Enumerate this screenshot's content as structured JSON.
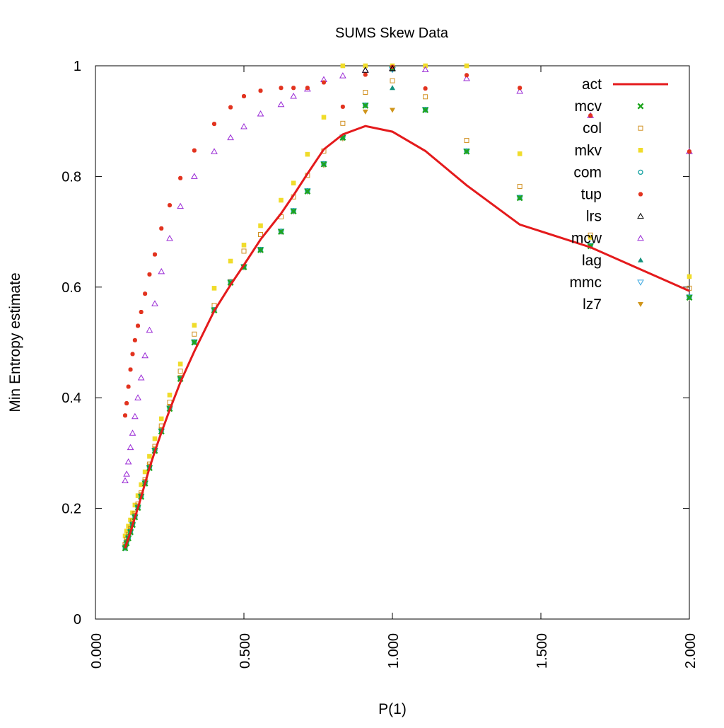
{
  "chart_data": {
    "type": "scatter",
    "title": "SUMS Skew Data",
    "xlabel": "P(1)",
    "ylabel": "Min Entropy estimate",
    "xlim": [
      0.0,
      2.0
    ],
    "ylim": [
      0,
      1
    ],
    "grid": false,
    "legend_position": "top-right",
    "x_tick_labels": [
      "0.000",
      "0.500",
      "1.000",
      "1.500",
      "2.000"
    ],
    "y_tick_labels": [
      "0",
      "0.2",
      "0.4",
      "0.6",
      "0.8",
      "1"
    ],
    "x": [
      0.1,
      0.105,
      0.111,
      0.118,
      0.125,
      0.133,
      0.143,
      0.154,
      0.167,
      0.182,
      0.2,
      0.222,
      0.25,
      0.286,
      0.333,
      0.4,
      0.455,
      0.5,
      0.556,
      0.625,
      0.667,
      0.714,
      0.769,
      0.833,
      0.909,
      1.0,
      1.111,
      1.25,
      1.429,
      1.667,
      2.0
    ],
    "series": [
      {
        "name": "act",
        "style": "line",
        "color": "#e41a1c",
        "values": [
          0.128,
          0.137,
          0.146,
          0.157,
          0.17,
          0.184,
          0.201,
          0.221,
          0.245,
          0.273,
          0.303,
          0.337,
          0.378,
          0.428,
          0.484,
          0.557,
          0.604,
          0.64,
          0.686,
          0.733,
          0.766,
          0.805,
          0.849,
          0.876,
          0.891,
          0.881,
          0.846,
          0.784,
          0.713,
          0.672,
          0.593
        ]
      },
      {
        "name": "mcv",
        "style": "x-cross",
        "color": "#1ea51e",
        "values": [
          0.128,
          0.137,
          0.146,
          0.157,
          0.17,
          0.184,
          0.201,
          0.221,
          0.245,
          0.273,
          0.304,
          0.339,
          0.38,
          0.434,
          0.5,
          0.558,
          0.608,
          0.636,
          0.667,
          0.7,
          0.737,
          0.773,
          0.822,
          0.87,
          0.928,
          0.995,
          0.92,
          0.845,
          0.761,
          0.674,
          0.581
        ]
      },
      {
        "name": "col",
        "style": "open-square",
        "color": "#d08f1f",
        "values": [
          0.135,
          0.144,
          0.153,
          0.164,
          0.177,
          0.191,
          0.208,
          0.228,
          0.252,
          0.28,
          0.312,
          0.349,
          0.392,
          0.448,
          0.515,
          0.567,
          0.61,
          0.665,
          0.695,
          0.727,
          0.763,
          0.802,
          0.846,
          0.896,
          0.952,
          0.973,
          0.944,
          0.865,
          0.782,
          0.694,
          0.598
        ]
      },
      {
        "name": "mkv",
        "style": "filled-square",
        "color": "#f0dc2a",
        "values": [
          0.15,
          0.159,
          0.168,
          0.179,
          0.192,
          0.206,
          0.223,
          0.243,
          0.266,
          0.294,
          0.326,
          0.362,
          0.405,
          0.461,
          0.531,
          0.598,
          0.647,
          0.676,
          0.711,
          0.757,
          0.788,
          0.84,
          0.907,
          1.0,
          1.0,
          1.0,
          1.0,
          1.0,
          0.841,
          0.69,
          0.619
        ]
      },
      {
        "name": "com",
        "style": "open-circle",
        "color": "#1ea5a5",
        "values": [
          0.129,
          0.138,
          0.147,
          0.158,
          0.171,
          0.185,
          0.202,
          0.222,
          0.246,
          0.274,
          0.305,
          0.34,
          0.381,
          0.435,
          0.501,
          0.559,
          0.609,
          0.637,
          0.668,
          0.701,
          0.738,
          0.774,
          0.823,
          0.871,
          0.929,
          0.994,
          0.921,
          0.846,
          0.762,
          0.675,
          0.582
        ]
      },
      {
        "name": "tup",
        "style": "filled-star",
        "color": "#e2331f",
        "values": [
          0.368,
          0.39,
          0.42,
          0.451,
          0.479,
          0.504,
          0.53,
          0.555,
          0.588,
          0.623,
          0.659,
          0.706,
          0.748,
          0.797,
          0.847,
          0.895,
          0.925,
          0.945,
          0.955,
          0.96,
          0.96,
          0.96,
          0.97,
          0.926,
          0.984,
          0.998,
          0.959,
          0.983,
          0.96,
          0.91,
          0.845
        ]
      },
      {
        "name": "lrs",
        "style": "open-triangle",
        "color": "#000000",
        "values": [
          null,
          null,
          null,
          null,
          null,
          null,
          null,
          null,
          null,
          null,
          null,
          null,
          null,
          null,
          null,
          null,
          null,
          null,
          null,
          null,
          null,
          null,
          null,
          null,
          0.992,
          0.995,
          null,
          null,
          null,
          null,
          null
        ]
      },
      {
        "name": "mcw",
        "style": "open-triangle",
        "color": "#9a2bd6",
        "values": [
          0.25,
          0.262,
          0.284,
          0.31,
          0.336,
          0.366,
          0.4,
          0.436,
          0.476,
          0.522,
          0.57,
          0.628,
          0.688,
          0.746,
          0.8,
          0.845,
          0.87,
          0.89,
          0.913,
          0.93,
          0.945,
          0.958,
          0.975,
          0.982,
          0.992,
          0.995,
          0.993,
          0.977,
          0.954,
          0.91,
          0.845
        ]
      },
      {
        "name": "lag",
        "style": "filled-triangle",
        "color": "#14937d",
        "values": [
          0.128,
          0.137,
          0.146,
          0.157,
          0.17,
          0.184,
          0.201,
          0.221,
          0.245,
          0.273,
          0.304,
          0.339,
          0.38,
          0.434,
          0.5,
          0.558,
          0.608,
          0.636,
          0.667,
          0.7,
          0.737,
          0.773,
          0.822,
          0.87,
          0.928,
          0.96,
          0.92,
          0.845,
          0.761,
          0.674,
          0.581
        ]
      },
      {
        "name": "mmc",
        "style": "open-inverted-triangle",
        "color": "#3aa7e0",
        "values": [
          0.129,
          0.138,
          0.147,
          0.158,
          0.171,
          0.185,
          0.202,
          0.222,
          0.246,
          0.274,
          0.305,
          0.34,
          0.381,
          0.435,
          0.501,
          0.559,
          0.609,
          0.637,
          0.668,
          0.701,
          0.738,
          0.774,
          0.823,
          0.871,
          0.929,
          0.993,
          0.921,
          0.846,
          0.762,
          0.675,
          0.582
        ]
      },
      {
        "name": "lz7",
        "style": "filled-inverted-triangle",
        "color": "#d0951b",
        "values": [
          0.132,
          0.141,
          0.15,
          0.161,
          0.174,
          0.188,
          0.205,
          0.225,
          0.249,
          0.277,
          0.308,
          0.343,
          0.384,
          0.437,
          0.501,
          0.558,
          0.607,
          0.635,
          0.666,
          0.699,
          0.736,
          0.772,
          0.82,
          0.868,
          0.917,
          0.92,
          0.92,
          0.845,
          0.761,
          0.673,
          0.58
        ]
      }
    ]
  }
}
